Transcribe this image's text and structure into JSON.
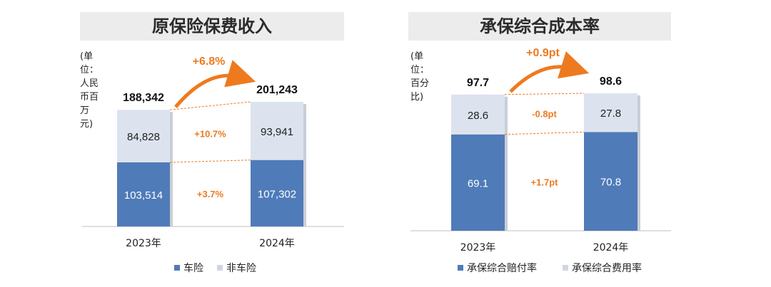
{
  "chart_data": [
    {
      "type": "bar",
      "stacked": true,
      "title": "原保险保费收入",
      "unit_label": "(单位：人民币百万元)",
      "categories": [
        "2023年",
        "2024年"
      ],
      "series": [
        {
          "name": "车险",
          "values": [
            103514,
            107302
          ],
          "labels": [
            "103,514",
            "107,302"
          ],
          "color": "#4f7bb8"
        },
        {
          "name": "非车险",
          "values": [
            84828,
            93941
          ],
          "labels": [
            "84,828",
            "93,941"
          ],
          "color": "#dce3ee"
        }
      ],
      "totals": [
        "188,342",
        "201,243"
      ],
      "total_values": [
        188342,
        201243
      ],
      "total_growth": "+6.8%",
      "segment_growth": [
        "+3.7%",
        "+10.7%"
      ],
      "grid": false,
      "legend_position": "bottom"
    },
    {
      "type": "bar",
      "stacked": true,
      "title": "承保综合成本率",
      "unit_label": "(单位：百分比)",
      "categories": [
        "2023年",
        "2024年"
      ],
      "series": [
        {
          "name": "承保综合赔付率",
          "values": [
            69.1,
            70.8
          ],
          "labels": [
            "69.1",
            "70.8"
          ],
          "color": "#4f7bb8"
        },
        {
          "name": "承保综合费用率",
          "values": [
            28.6,
            27.8
          ],
          "labels": [
            "28.6",
            "27.8"
          ],
          "color": "#dce3ee"
        }
      ],
      "totals": [
        "97.7",
        "98.6"
      ],
      "total_values": [
        97.7,
        98.6
      ],
      "total_growth": "+0.9pt",
      "segment_growth": [
        "+1.7pt",
        "-0.8pt"
      ],
      "grid": false,
      "legend_position": "bottom"
    }
  ],
  "colors": {
    "accent": "#ee7a1f",
    "bottom_series": "#4f7bb8",
    "top_series": "#dce3ee",
    "axis": "#bfbfbf"
  }
}
